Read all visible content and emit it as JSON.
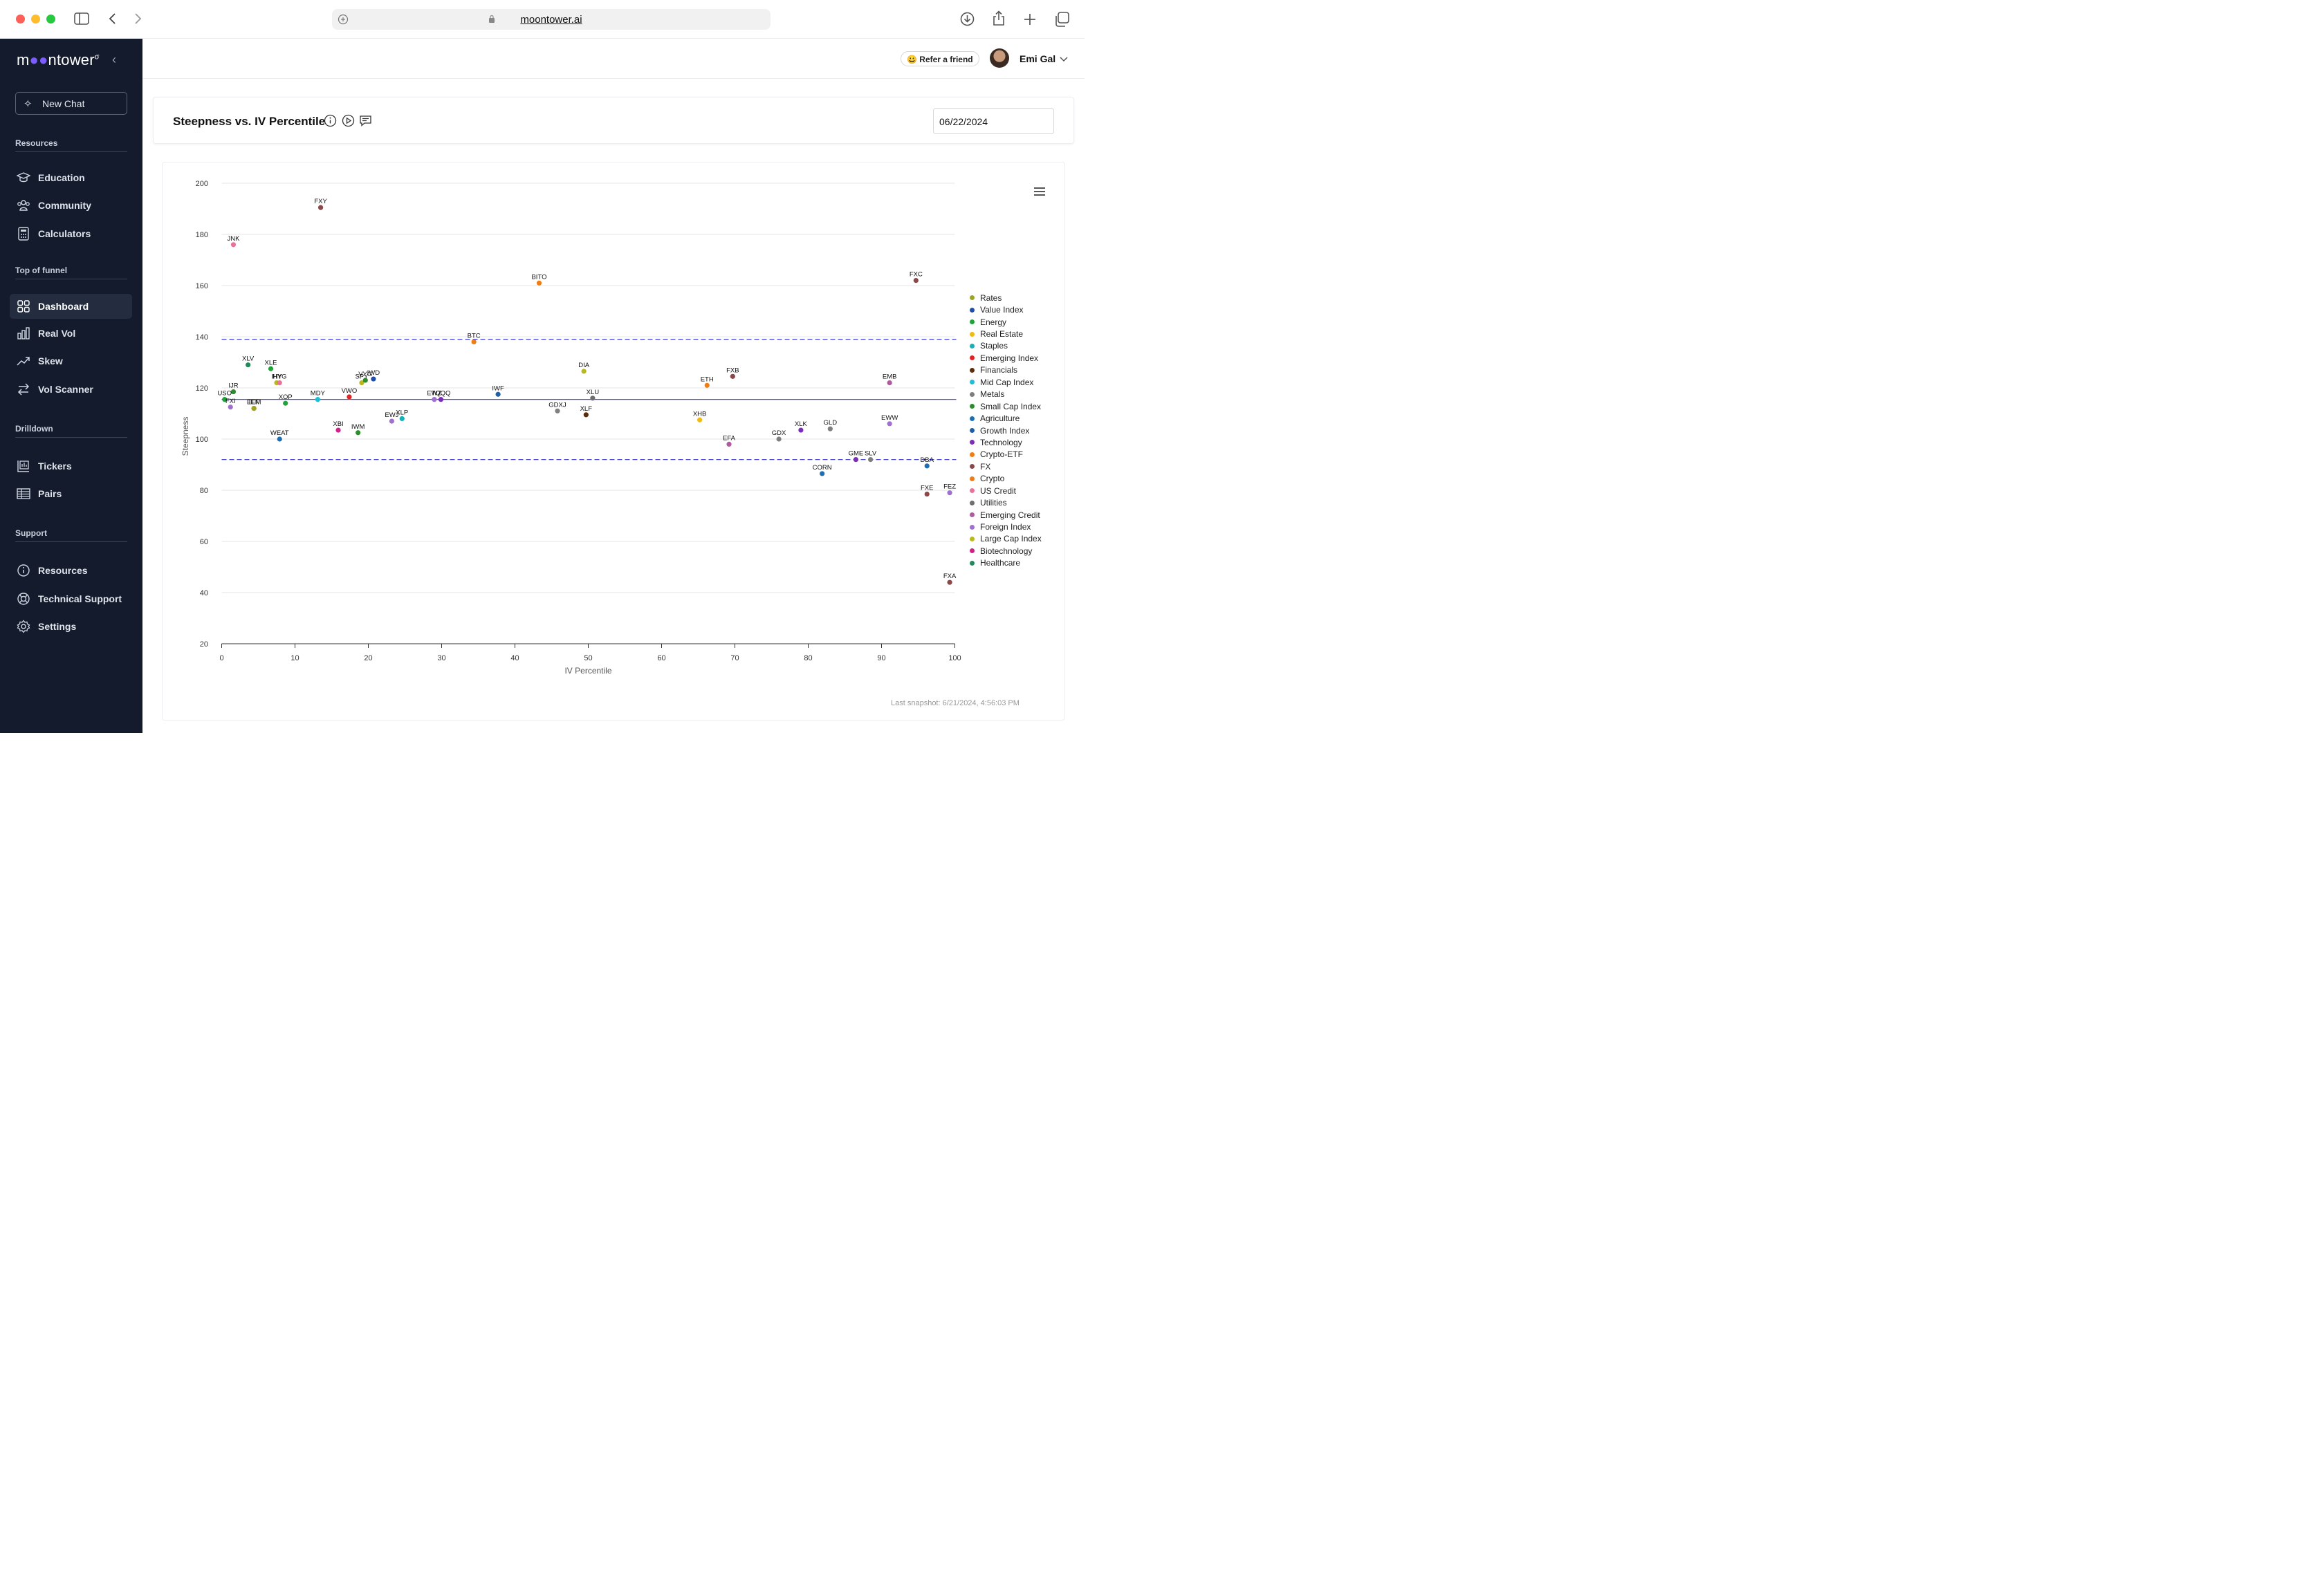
{
  "browser": {
    "url": "moontower.ai"
  },
  "sidebar": {
    "logo": "moontower",
    "new_chat": "New Chat",
    "sections": {
      "resources": "Resources",
      "top_of_funnel": "Top of funnel",
      "drilldown": "Drilldown",
      "support": "Support"
    },
    "items": [
      {
        "label": "Education",
        "icon": "graduation-cap-icon"
      },
      {
        "label": "Community",
        "icon": "users-icon"
      },
      {
        "label": "Calculators",
        "icon": "calculator-icon"
      },
      {
        "label": "Dashboard",
        "icon": "dashboard-grid-icon",
        "active": true
      },
      {
        "label": "Real Vol",
        "icon": "bar-chart-icon"
      },
      {
        "label": "Skew",
        "icon": "trend-up-icon"
      },
      {
        "label": "Vol Scanner",
        "icon": "swap-arrows-icon"
      },
      {
        "label": "Tickers",
        "icon": "chart-frame-icon"
      },
      {
        "label": "Pairs",
        "icon": "table-icon"
      },
      {
        "label": "Resources",
        "icon": "info-icon"
      },
      {
        "label": "Technical Support",
        "icon": "lifebuoy-icon"
      },
      {
        "label": "Settings",
        "icon": "gear-icon"
      }
    ]
  },
  "topbar": {
    "refer": "😀 Refer a friend",
    "user": "Emi Gal"
  },
  "page": {
    "title": "Steepness vs. IV Percentile",
    "date": "06/22/2024"
  },
  "footer": {
    "snapshot": "Last snapshot: 6/21/2024, 4:56:03 PM"
  },
  "chart_data": {
    "type": "scatter",
    "xlabel": "IV Percentile",
    "ylabel": "Steepness",
    "xlim": [
      0,
      100
    ],
    "ylim": [
      20,
      200
    ],
    "xticks": [
      0,
      10,
      20,
      30,
      40,
      50,
      60,
      70,
      80,
      90,
      100
    ],
    "yticks": [
      20,
      40,
      60,
      80,
      100,
      120,
      140,
      160,
      180,
      200
    ],
    "grid": true,
    "legend_position": "right",
    "reference_lines": [
      {
        "y": 139,
        "style": "dashed"
      },
      {
        "y": 115.5,
        "style": "solid"
      },
      {
        "y": 92,
        "style": "dashed"
      }
    ],
    "series": [
      {
        "name": "Rates",
        "color": "#9aa61e"
      },
      {
        "name": "Value Index",
        "color": "#1f4fa8"
      },
      {
        "name": "Energy",
        "color": "#22a33a"
      },
      {
        "name": "Real Estate",
        "color": "#f0b915"
      },
      {
        "name": "Staples",
        "color": "#17b0b8"
      },
      {
        "name": "Emerging Index",
        "color": "#e02323"
      },
      {
        "name": "Financials",
        "color": "#5a2d0c"
      },
      {
        "name": "Mid Cap Index",
        "color": "#21bcd6"
      },
      {
        "name": "Metals",
        "color": "#7f7f7f"
      },
      {
        "name": "Small Cap Index",
        "color": "#2e8b2e"
      },
      {
        "name": "Agriculture",
        "color": "#1f6fb0"
      },
      {
        "name": "Growth Index",
        "color": "#1f5fa8"
      },
      {
        "name": "Technology",
        "color": "#7a2db8"
      },
      {
        "name": "Crypto-ETF",
        "color": "#f07d12"
      },
      {
        "name": "FX",
        "color": "#8c4848"
      },
      {
        "name": "Crypto",
        "color": "#f07d12"
      },
      {
        "name": "US Credit",
        "color": "#e8739a"
      },
      {
        "name": "Utilities",
        "color": "#6e6e6e"
      },
      {
        "name": "Emerging Credit",
        "color": "#b05aa0"
      },
      {
        "name": "Foreign Index",
        "color": "#a070d0"
      },
      {
        "name": "Large Cap Index",
        "color": "#b8b820"
      },
      {
        "name": "Biotechnology",
        "color": "#d0208a"
      },
      {
        "name": "Healthcare",
        "color": "#1f8a5a"
      }
    ],
    "points": [
      {
        "label": "FXY",
        "x": 13.5,
        "y": 190.5,
        "series": "FX"
      },
      {
        "label": "JNK",
        "x": 1.6,
        "y": 176,
        "series": "US Credit"
      },
      {
        "label": "BITO",
        "x": 43.3,
        "y": 161,
        "series": "Crypto-ETF"
      },
      {
        "label": "FXC",
        "x": 94.7,
        "y": 162,
        "series": "FX"
      },
      {
        "label": "BTC",
        "x": 34.4,
        "y": 138,
        "series": "Crypto"
      },
      {
        "label": "XLV",
        "x": 3.6,
        "y": 129,
        "series": "Healthcare"
      },
      {
        "label": "XLE",
        "x": 6.7,
        "y": 127.5,
        "series": "Energy"
      },
      {
        "label": "IHY",
        "x": 7.5,
        "y": 122,
        "series": "Large Cap Index"
      },
      {
        "label": "HYG",
        "x": 7.9,
        "y": 122,
        "series": "US Credit"
      },
      {
        "label": "SPY",
        "x": 19.1,
        "y": 122,
        "series": "Large Cap Index"
      },
      {
        "label": "VYG",
        "x": 19.6,
        "y": 123,
        "series": "Small Cap Index"
      },
      {
        "label": "IWD",
        "x": 20.7,
        "y": 123.5,
        "series": "Value Index"
      },
      {
        "label": "IJR",
        "x": 1.6,
        "y": 118.5,
        "series": "Small Cap Index"
      },
      {
        "label": "USO",
        "x": 0.4,
        "y": 115.5,
        "series": "Energy"
      },
      {
        "label": "FXI",
        "x": 1.2,
        "y": 112.5,
        "series": "Foreign Index"
      },
      {
        "label": "EEM",
        "x": 4.4,
        "y": 112,
        "series": "Emerging Index"
      },
      {
        "label": "IEF",
        "x": 4.4,
        "y": 112,
        "series": "Rates"
      },
      {
        "label": "XOP",
        "x": 8.7,
        "y": 114,
        "series": "Energy"
      },
      {
        "label": "MDY",
        "x": 13.1,
        "y": 115.5,
        "series": "Mid Cap Index"
      },
      {
        "label": "VWO",
        "x": 17.4,
        "y": 116.5,
        "series": "Emerging Index"
      },
      {
        "label": "EWZ",
        "x": 29.0,
        "y": 115.5,
        "series": "Foreign Index"
      },
      {
        "label": "TQQQ",
        "x": 29.9,
        "y": 115.5,
        "series": "Technology"
      },
      {
        "label": "IWF",
        "x": 37.7,
        "y": 117.5,
        "series": "Growth Index"
      },
      {
        "label": "DIA",
        "x": 49.4,
        "y": 126.5,
        "series": "Large Cap Index"
      },
      {
        "label": "XLU",
        "x": 50.6,
        "y": 116,
        "series": "Utilities"
      },
      {
        "label": "GDXJ",
        "x": 45.8,
        "y": 111,
        "series": "Metals"
      },
      {
        "label": "XLF",
        "x": 49.7,
        "y": 109.5,
        "series": "Financials"
      },
      {
        "label": "ETH",
        "x": 66.2,
        "y": 121,
        "series": "Crypto"
      },
      {
        "label": "FXB",
        "x": 69.7,
        "y": 124.5,
        "series": "FX"
      },
      {
        "label": "EMB",
        "x": 91.1,
        "y": 122,
        "series": "Emerging Credit"
      },
      {
        "label": "XHB",
        "x": 65.2,
        "y": 107.5,
        "series": "Real Estate"
      },
      {
        "label": "EFA",
        "x": 69.2,
        "y": 98,
        "series": "Emerging Credit"
      },
      {
        "label": "GDX",
        "x": 76.0,
        "y": 100,
        "series": "Metals"
      },
      {
        "label": "XLK",
        "x": 79.0,
        "y": 103.5,
        "series": "Technology"
      },
      {
        "label": "GLD",
        "x": 83.0,
        "y": 104,
        "series": "Metals"
      },
      {
        "label": "EWW",
        "x": 91.1,
        "y": 106,
        "series": "Foreign Index"
      },
      {
        "label": "XBI",
        "x": 15.9,
        "y": 103.5,
        "series": "Biotechnology"
      },
      {
        "label": "IWM",
        "x": 18.6,
        "y": 102.5,
        "series": "Small Cap Index"
      },
      {
        "label": "EWJ",
        "x": 23.2,
        "y": 107,
        "series": "Foreign Index"
      },
      {
        "label": "XLP",
        "x": 24.6,
        "y": 108,
        "series": "Staples"
      },
      {
        "label": "WEAT",
        "x": 7.9,
        "y": 100,
        "series": "Agriculture"
      },
      {
        "label": "GME",
        "x": 86.5,
        "y": 92,
        "series": "Technology"
      },
      {
        "label": "SLV",
        "x": 88.5,
        "y": 92,
        "series": "Metals"
      },
      {
        "label": "DBA",
        "x": 96.2,
        "y": 89.5,
        "series": "Agriculture"
      },
      {
        "label": "CORN",
        "x": 81.9,
        "y": 86.5,
        "series": "Agriculture"
      },
      {
        "label": "FXE",
        "x": 96.2,
        "y": 78.5,
        "series": "FX"
      },
      {
        "label": "FEZ",
        "x": 99.3,
        "y": 79,
        "series": "Foreign Index"
      },
      {
        "label": "FXA",
        "x": 99.3,
        "y": 44,
        "series": "FX"
      }
    ]
  }
}
